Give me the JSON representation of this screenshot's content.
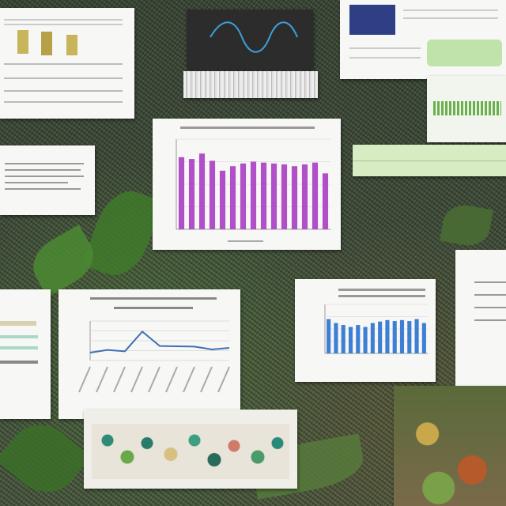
{
  "scene": "collage",
  "colors": {
    "purple_bar": "#b04fc8",
    "blue_bar": "#3d7fd4",
    "line_stroke": "#3f6fb5",
    "wave_stroke": "#3aa0d8",
    "green_panel": "#d7ecc2"
  },
  "chart_data": [
    {
      "type": "bar",
      "values": [
        80,
        78,
        84,
        76,
        65,
        70,
        73,
        75,
        74,
        73,
        72,
        70,
        72,
        74,
        62
      ],
      "ylim": [
        0,
        100
      ],
      "title": "",
      "xlabel": "",
      "ylabel": ""
    },
    {
      "type": "line",
      "values": [
        3,
        4,
        3.5,
        11,
        5.5,
        5.4,
        5.3,
        4.2,
        4.8
      ],
      "ylim": [
        0,
        15
      ],
      "title": "",
      "xlabel": "",
      "ylabel": ""
    },
    {
      "type": "bar",
      "values": [
        70,
        62,
        58,
        54,
        58,
        54,
        62,
        65,
        68,
        66,
        68,
        66,
        70,
        62
      ],
      "ylim": [
        0,
        100
      ],
      "title": "",
      "xlabel": "",
      "ylabel": ""
    }
  ]
}
